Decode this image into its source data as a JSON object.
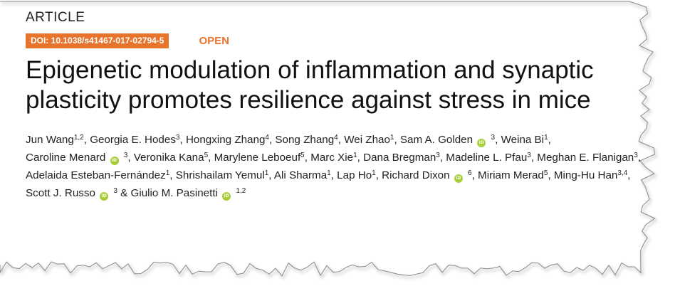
{
  "article": {
    "section": "ARTICLE",
    "doi": "DOI: 10.1038/s41467-017-02794-5",
    "access": "OPEN",
    "title": "Epigenetic modulation of inflammation and synaptic plasticity promotes resilience against stress in mice"
  },
  "authors": [
    {
      "name": "Jun Wang",
      "aff": "1,2"
    },
    {
      "name": "Georgia E. Hodes",
      "aff": "3"
    },
    {
      "name": "Hongxing Zhang",
      "aff": "4"
    },
    {
      "name": "Song Zhang",
      "aff": "4"
    },
    {
      "name": "Wei Zhao",
      "aff": "1"
    },
    {
      "name": "Sam A. Golden",
      "aff": "3",
      "orcid": true
    },
    {
      "name": "Weina Bi",
      "aff": "1"
    },
    {
      "name": "Caroline Menard",
      "aff": "3",
      "orcid": true
    },
    {
      "name": "Veronika Kana",
      "aff": "5"
    },
    {
      "name": "Marylene Leboeuf",
      "aff": "5"
    },
    {
      "name": "Marc Xie",
      "aff": "1"
    },
    {
      "name": "Dana Bregman",
      "aff": "3"
    },
    {
      "name": "Madeline L. Pfau",
      "aff": "3"
    },
    {
      "name": "Meghan E. Flanigan",
      "aff": "3"
    },
    {
      "name": "Adelaida Esteban-Fernández",
      "aff": "1"
    },
    {
      "name": "Shrishailam Yemul",
      "aff": "1"
    },
    {
      "name": "Ali Sharma",
      "aff": "1"
    },
    {
      "name": "Lap Ho",
      "aff": "1"
    },
    {
      "name": "Richard Dixon",
      "aff": "6",
      "orcid": true
    },
    {
      "name": "Miriam Merad",
      "aff": "5"
    },
    {
      "name": "Ming-Hu Han",
      "aff": "3,4"
    },
    {
      "name": "Scott J. Russo",
      "aff": "3",
      "orcid": true
    },
    {
      "name": "Giulio M. Pasinetti",
      "aff": "1,2",
      "orcid": true
    }
  ],
  "separators": {
    "comma": ", ",
    "last": " & "
  },
  "orcid_icon": {
    "name": "orcid-icon",
    "glyph": "iD",
    "color": "#a6ce39"
  },
  "colors": {
    "accent": "#e8742c",
    "text": "#222222"
  }
}
